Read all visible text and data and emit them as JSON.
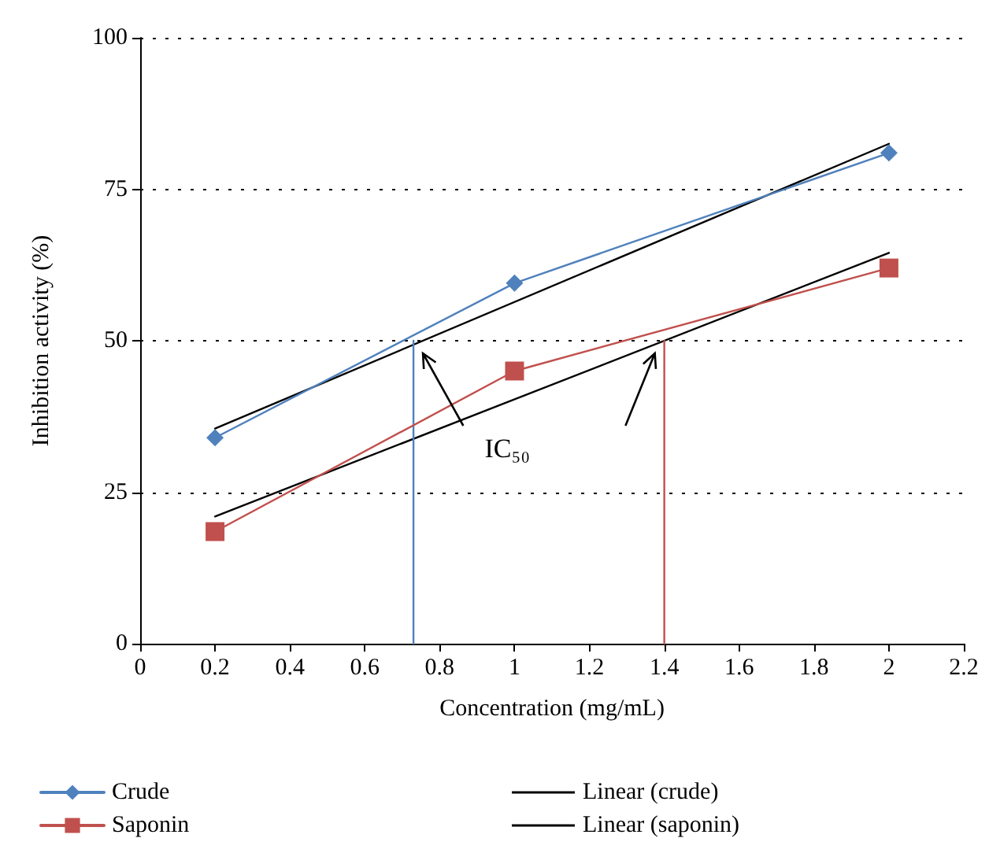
{
  "chart_data": {
    "type": "line",
    "xlabel": "Concentration (mg/mL)",
    "ylabel": "Inhibition activity (%)",
    "x": [
      0.2,
      1,
      2
    ],
    "xlim": [
      0,
      2.2
    ],
    "xticks": [
      0,
      0.2,
      0.4,
      0.6,
      0.8,
      1,
      1.2,
      1.4,
      1.6,
      1.8,
      2,
      2.2
    ],
    "ylim": [
      0,
      100
    ],
    "yticks": [
      0,
      25,
      50,
      75,
      100
    ],
    "grid": "y",
    "legend": "bottom",
    "line_style": "solid",
    "annotations": [
      "IC₅₀"
    ],
    "series": [
      {
        "name": "Crude",
        "color": "#4f81bd",
        "marker": "diamond",
        "values": [
          34,
          59.5,
          81
        ]
      },
      {
        "name": "Saponin",
        "color": "#c0504d",
        "marker": "square",
        "values": [
          18.5,
          45,
          62
        ]
      },
      {
        "name": "Linear (crude)",
        "color": "#000000",
        "marker": "none",
        "x": [
          0.2,
          2
        ],
        "values": [
          35.5,
          82.5
        ]
      },
      {
        "name": "Linear (saponin)",
        "color": "#000000",
        "marker": "none",
        "x": [
          0.2,
          2
        ],
        "values": [
          21,
          64.5
        ]
      },
      {
        "color": "#4f81bd",
        "marker": "none",
        "x": [
          0.73,
          0.73
        ],
        "values": [
          0,
          50
        ]
      },
      {
        "color": "#c0504d",
        "marker": "none",
        "x": [
          1.4,
          1.4
        ],
        "values": [
          0,
          50
        ]
      }
    ]
  }
}
